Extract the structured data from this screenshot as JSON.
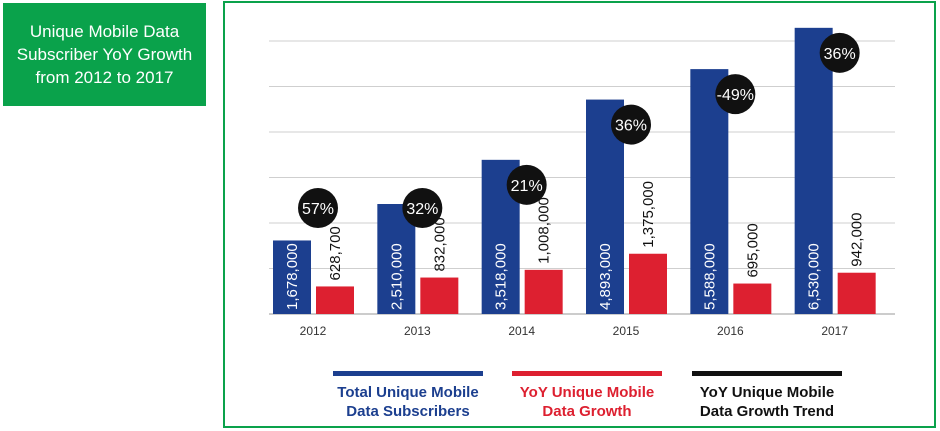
{
  "title": "Unique Mobile Data Subscriber YoY Growth from 2012 to 2017",
  "colors": {
    "title_bg": "#0aa24b",
    "frame": "#0aa24b",
    "subscribers": "#1c3f8f",
    "growth": "#dd2030",
    "trend": "#111111",
    "grid": "#cfcfcf"
  },
  "chart_data": {
    "type": "bar",
    "title": "Unique Mobile Data Subscriber YoY Growth from 2012 to 2017",
    "categories": [
      "2012",
      "2013",
      "2014",
      "2015",
      "2016",
      "2017"
    ],
    "series": [
      {
        "name": "Total Unique Mobile Data Subscribers",
        "values": [
          1678000,
          2510000,
          3518000,
          4893000,
          5588000,
          6530000
        ],
        "labels": [
          "1,678,000",
          "2,510,000",
          "3,518,000",
          "4,893,000",
          "5,588,000",
          "6,530,000"
        ]
      },
      {
        "name": "YoY Unique Mobile Data Growth",
        "values": [
          628700,
          832000,
          1008000,
          1375000,
          695000,
          942000
        ],
        "labels": [
          "628,700",
          "832,000",
          "1,008,000",
          "1,375,000",
          "695,000",
          "942,000"
        ]
      }
    ],
    "growth_trend": {
      "name": "YoY Unique Mobile Data Growth Trend",
      "values": [
        57,
        32,
        21,
        36,
        -49,
        36
      ],
      "labels": [
        "57%",
        "32%",
        "21%",
        "36%",
        "-49%",
        "36%"
      ]
    },
    "ylim": [
      0,
      6800000
    ],
    "grid": true,
    "legend_position": "bottom"
  },
  "legend": [
    {
      "line1": "Total Unique Mobile",
      "line2": "Data Subscribers",
      "color": "#1c3f8f"
    },
    {
      "line1": "YoY Unique Mobile",
      "line2": "Data Growth",
      "color": "#dd2030"
    },
    {
      "line1": "YoY Unique Mobile",
      "line2": "Data Growth Trend",
      "color": "#111111"
    }
  ]
}
